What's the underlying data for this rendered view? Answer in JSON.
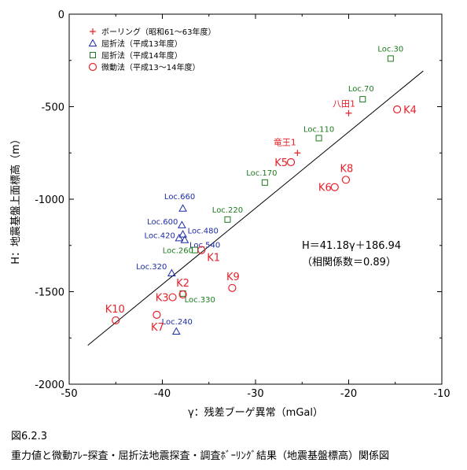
{
  "figure": {
    "number": "図6.2.3",
    "caption": "重力値と微動ｱﾚｰ探査・屈折法地震探査・調査ﾎﾞｰﾘﾝｸﾞ結果（地震基盤標高）関係図"
  },
  "chart_data": {
    "type": "scatter",
    "title": "",
    "xlabel": "γ：残差ブーゲ異常（mGal）",
    "ylabel": "H：地震基盤上面標高（m）",
    "xlim": [
      -50,
      -10
    ],
    "ylim": [
      -2000,
      0
    ],
    "xticks": [
      -50,
      -40,
      -30,
      -20,
      -10
    ],
    "yticks": [
      0,
      -500,
      -1000,
      -1500,
      -2000
    ],
    "grid": false,
    "legend_position": "top-left",
    "regression": {
      "equation": "H＝41.18γ＋186.94",
      "note": "（相関係数＝0.89）",
      "slope": 41.18,
      "intercept": 186.94,
      "x_range": [
        -48,
        -12
      ]
    },
    "series": [
      {
        "name": "ボーリング（昭和61～63年度）",
        "marker": "plus",
        "color": "#e8202a",
        "points": [
          {
            "x": -25.5,
            "y": -750,
            "label": "竜王1"
          },
          {
            "x": -20.0,
            "y": -535,
            "label": "八田1"
          }
        ]
      },
      {
        "name": "屈折法（平成13年度）",
        "marker": "triangle",
        "color": "#1d2ba8",
        "points": [
          {
            "x": -37.8,
            "y": -1050,
            "label": "Loc.660"
          },
          {
            "x": -37.9,
            "y": -1140,
            "label": "Loc.600"
          },
          {
            "x": -37.8,
            "y": -1190,
            "label": "Loc.480"
          },
          {
            "x": -38.2,
            "y": -1210,
            "label": "Loc.420"
          },
          {
            "x": -37.6,
            "y": -1220,
            "label": "Loc.540"
          },
          {
            "x": -39.0,
            "y": -1400,
            "label": "Loc.320"
          },
          {
            "x": -38.5,
            "y": -1715,
            "label": "Loc.240"
          }
        ]
      },
      {
        "name": "屈折法（平成14年度）",
        "marker": "square",
        "color": "#1c7a1c",
        "points": [
          {
            "x": -15.5,
            "y": -240,
            "label": "Loc.30"
          },
          {
            "x": -18.5,
            "y": -460,
            "label": "Loc.70"
          },
          {
            "x": -23.2,
            "y": -670,
            "label": "Loc.110"
          },
          {
            "x": -29.0,
            "y": -910,
            "label": "Loc.170"
          },
          {
            "x": -33.0,
            "y": -1110,
            "label": "Loc.220"
          },
          {
            "x": -36.5,
            "y": -1275,
            "label": "Loc.260"
          },
          {
            "x": -37.8,
            "y": -1510,
            "label": "Loc.330"
          }
        ]
      },
      {
        "name": "微動法（平成13～14年度）",
        "marker": "circle",
        "color": "#e8202a",
        "points": [
          {
            "x": -35.8,
            "y": -1275,
            "label": "K1"
          },
          {
            "x": -37.8,
            "y": -1515,
            "label": "K2"
          },
          {
            "x": -38.9,
            "y": -1530,
            "label": "K3"
          },
          {
            "x": -14.8,
            "y": -515,
            "label": "K4"
          },
          {
            "x": -26.2,
            "y": -800,
            "label": "K5"
          },
          {
            "x": -21.5,
            "y": -935,
            "label": "K6"
          },
          {
            "x": -40.6,
            "y": -1625,
            "label": "K7"
          },
          {
            "x": -20.3,
            "y": -895,
            "label": "K8"
          },
          {
            "x": -32.5,
            "y": -1480,
            "label": "K9"
          },
          {
            "x": -45.0,
            "y": -1655,
            "label": "K10"
          }
        ]
      }
    ]
  }
}
